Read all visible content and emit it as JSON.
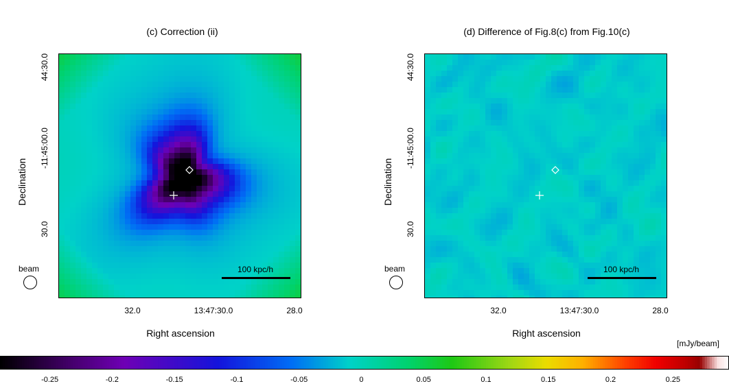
{
  "chart_data": [
    {
      "type": "heatmap",
      "title": "(c) Correction (ii)",
      "xlabel": "Right ascension",
      "ylabel": "Declination",
      "x_tick_labels": [
        "32.0",
        "13:47:30.0",
        "28.0"
      ],
      "y_tick_labels": [
        "44:30.0",
        "-11:45:00.0",
        "30.0"
      ],
      "beam_label": "beam",
      "scalebar_label": "100 kpc/h",
      "markers": [
        "plus",
        "diamond"
      ],
      "min_value": -0.28,
      "background_value": 0.0
    },
    {
      "type": "heatmap",
      "title": "(d) Difference of Fig.8(c) from Fig.10(c)",
      "xlabel": "Right ascension",
      "ylabel": "Declination",
      "x_tick_labels": [
        "32.0",
        "13:47:30.0",
        "28.0"
      ],
      "y_tick_labels": [
        "44:30.0",
        "-11:45:00.0",
        "30.0"
      ],
      "beam_label": "beam",
      "scalebar_label": "100 kpc/h",
      "markers": [
        "plus",
        "diamond"
      ],
      "value_range": [
        -0.05,
        0.06
      ]
    }
  ],
  "colorbar": {
    "unit": "[mJy/beam]",
    "range": [
      -0.29,
      0.295
    ],
    "tick_labels": [
      "-0.25",
      "-0.2",
      "-0.15",
      "-0.1",
      "-0.05",
      "0",
      "0.05",
      "0.1",
      "0.15",
      "0.2",
      "0.25"
    ],
    "tick_values": [
      -0.25,
      -0.2,
      -0.15,
      -0.1,
      -0.05,
      0,
      0.05,
      0.1,
      0.15,
      0.2,
      0.25
    ]
  }
}
